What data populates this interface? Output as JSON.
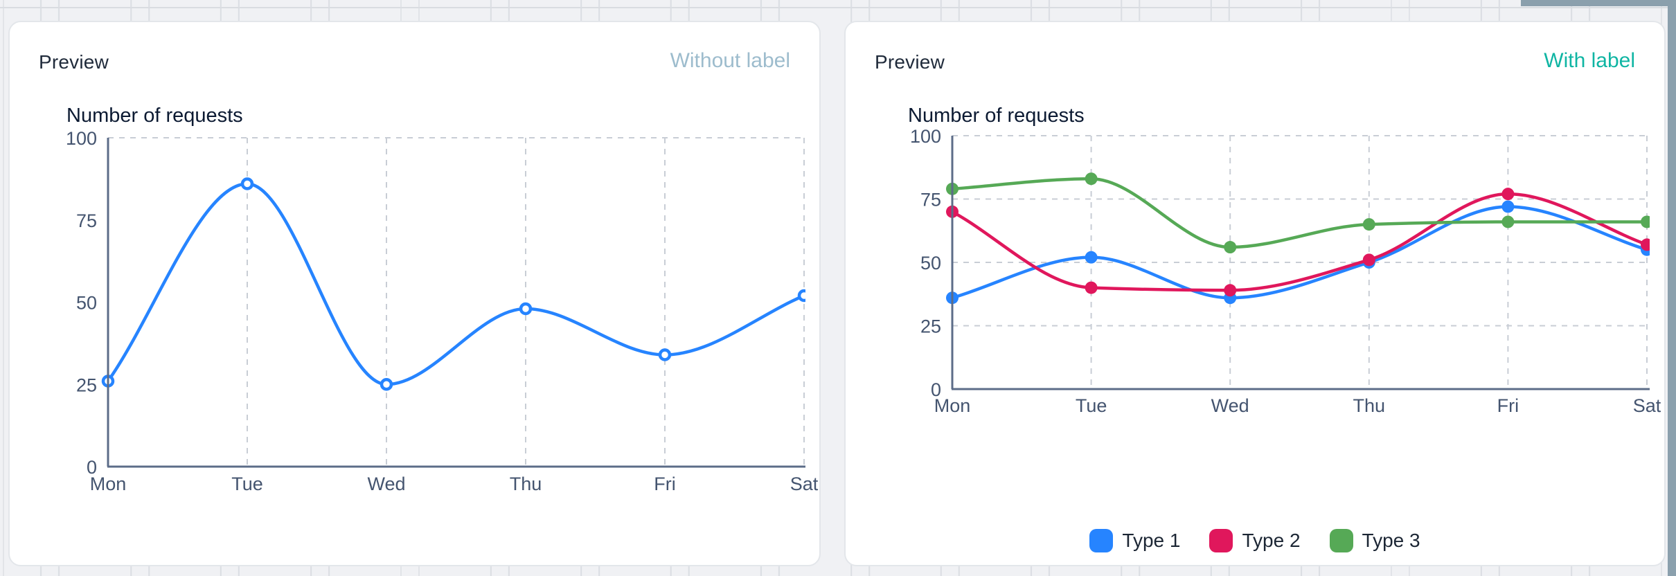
{
  "page": {
    "background_color": "#f0f1f4",
    "scrollbar_color": "#8ba0ad"
  },
  "cards": [
    {
      "title": "Preview",
      "badge": "Without label",
      "badge_color": "#9dbccd",
      "axis_title": "Number of requests"
    },
    {
      "title": "Preview",
      "badge": "With label",
      "badge_color": "#0fb5a3",
      "axis_title": "Number of requests"
    }
  ],
  "chart_data": [
    {
      "type": "line",
      "title": "Number of requests",
      "categories": [
        "Mon",
        "Tue",
        "Wed",
        "Thu",
        "Fri",
        "Sat"
      ],
      "series": [
        {
          "name": "requests",
          "color": "#2684ff",
          "values": [
            26,
            86,
            25,
            48,
            34,
            52
          ]
        }
      ],
      "ylim": [
        0,
        100
      ],
      "yticks": [
        0,
        25,
        50,
        75,
        100
      ],
      "grid": "vertical dashed lines per day, dashed top line at 100 only",
      "marker": "hollow",
      "legend": "none",
      "axis_color": "#5c6c88",
      "tick_label_color": "#44546f",
      "gridline_color": "#c8cdd5"
    },
    {
      "type": "line",
      "title": "Number of requests",
      "categories": [
        "Mon",
        "Tue",
        "Wed",
        "Thu",
        "Fri",
        "Sat"
      ],
      "series": [
        {
          "name": "Type 1",
          "color": "#2684ff",
          "values": [
            36,
            52,
            36,
            50,
            72,
            55
          ]
        },
        {
          "name": "Type 2",
          "color": "#e0175c",
          "values": [
            70,
            40,
            39,
            51,
            77,
            57
          ]
        },
        {
          "name": "Type 3",
          "color": "#56a956",
          "values": [
            79,
            83,
            56,
            65,
            66,
            66
          ]
        }
      ],
      "ylim": [
        0,
        100
      ],
      "yticks": [
        0,
        25,
        50,
        75,
        100
      ],
      "grid": "vertical dashed lines per day plus horizontal dashed lines at 25/50/75/100",
      "marker": "filled",
      "legend": "bottom",
      "axis_color": "#5c6c88",
      "tick_label_color": "#44546f",
      "gridline_color": "#c8cdd5"
    }
  ]
}
